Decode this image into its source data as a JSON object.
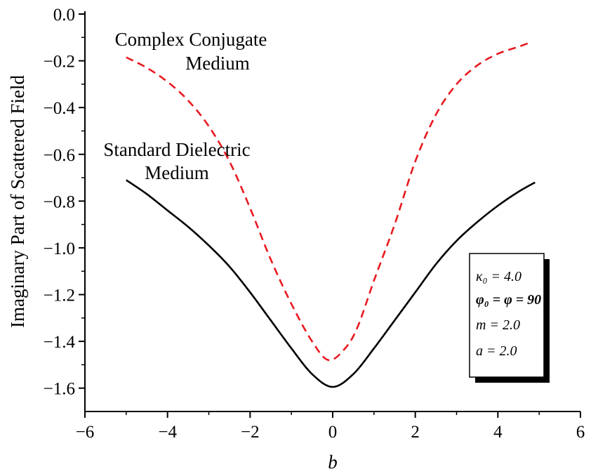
{
  "chart_data": {
    "type": "line",
    "xlabel": "b",
    "ylabel": "Imaginary Part of Scattered Field",
    "xlim": [
      -6,
      6
    ],
    "ylim": [
      -1.7,
      0.0
    ],
    "xticks": [
      -6,
      -4,
      -2,
      0,
      2,
      4,
      6
    ],
    "xtick_labels": [
      "−6",
      "−4",
      "−2",
      "0",
      "2",
      "4",
      "6"
    ],
    "yticks": [
      0.0,
      -0.2,
      -0.4,
      -0.6,
      -0.8,
      -1.0,
      -1.2,
      -1.4,
      -1.6
    ],
    "ytick_labels": [
      "0.0",
      "−0.2",
      "−0.4",
      "−0.6",
      "−0.8",
      "−1.0",
      "−1.2",
      "−1.4",
      "−1.6"
    ],
    "series": [
      {
        "label_lines": [
          "Standard Dielectric",
          "Medium"
        ],
        "color": "#000000",
        "dash": "solid",
        "x": [
          -5.0,
          -4.5,
          -4.0,
          -3.5,
          -3.0,
          -2.5,
          -2.0,
          -1.5,
          -1.0,
          -0.5,
          0.0,
          0.5,
          1.0,
          1.5,
          2.0,
          2.5,
          3.0,
          3.5,
          4.0,
          4.5,
          4.9
        ],
        "y": [
          -0.71,
          -0.77,
          -0.84,
          -0.91,
          -0.99,
          -1.08,
          -1.19,
          -1.31,
          -1.43,
          -1.54,
          -1.595,
          -1.54,
          -1.43,
          -1.31,
          -1.19,
          -1.07,
          -0.97,
          -0.89,
          -0.82,
          -0.76,
          -0.72
        ]
      },
      {
        "label_lines": [
          "Complex Conjugate",
          "Medium"
        ],
        "color": "#e8191f",
        "dash": "dashed",
        "x": [
          -5.0,
          -4.5,
          -4.0,
          -3.5,
          -3.0,
          -2.5,
          -2.0,
          -1.5,
          -1.0,
          -0.5,
          -0.1,
          0.3,
          0.6,
          1.0,
          1.5,
          2.0,
          2.5,
          3.0,
          3.5,
          4.0,
          4.5,
          4.8
        ],
        "y": [
          -0.185,
          -0.23,
          -0.29,
          -0.37,
          -0.48,
          -0.63,
          -0.83,
          -1.05,
          -1.24,
          -1.4,
          -1.48,
          -1.43,
          -1.34,
          -1.14,
          -0.9,
          -0.63,
          -0.43,
          -0.3,
          -0.22,
          -0.17,
          -0.14,
          -0.12
        ]
      }
    ],
    "legend": {
      "position": "right",
      "lines": [
        "κ₀ = 4.0",
        "φ₀ = φ = 90",
        "m = 2.0",
        "a = 2.0"
      ]
    }
  }
}
